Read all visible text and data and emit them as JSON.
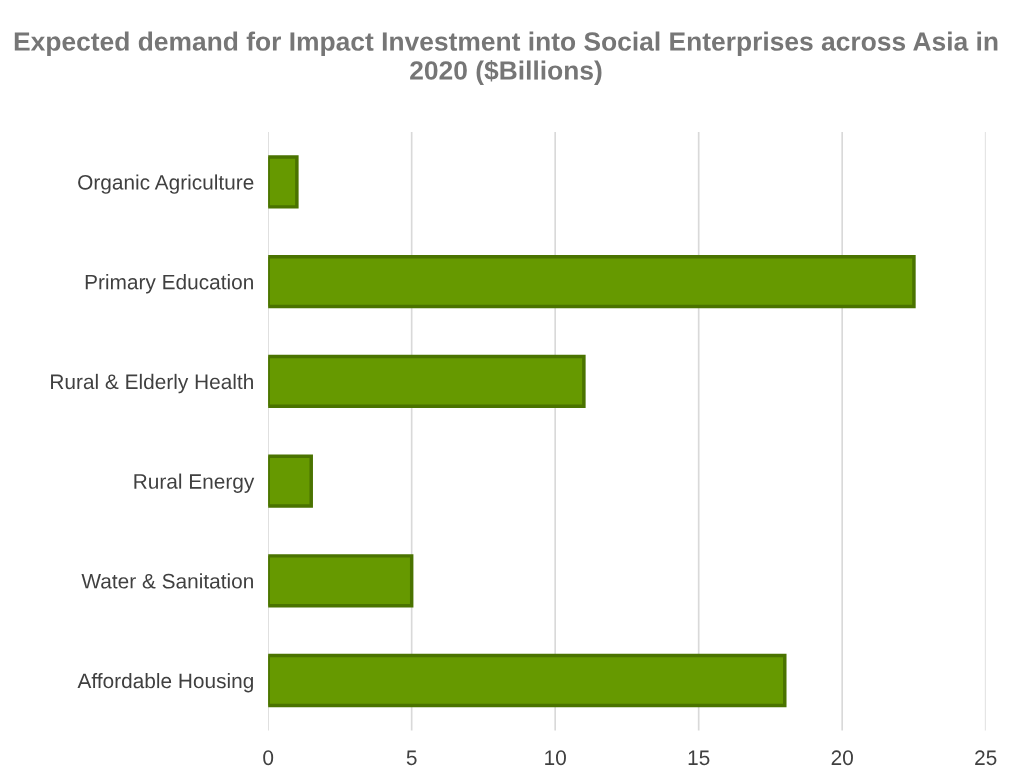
{
  "chart_data": {
    "type": "bar",
    "orientation": "horizontal",
    "title": "Expected demand for Impact Investment into Social Enterprises across Asia in 2020 ($Billions)",
    "categories": [
      "Organic Agriculture",
      "Primary Education",
      "Rural & Elderly Health",
      "Rural Energy",
      "Water & Sanitation",
      "Affordable Housing"
    ],
    "values": [
      1.0,
      22.5,
      11.0,
      1.5,
      5.0,
      18.0
    ],
    "color": "#669900",
    "xlim": [
      0,
      25
    ],
    "xticks": [
      0,
      5,
      10,
      15,
      20,
      25
    ],
    "grid": "x",
    "legend": false
  }
}
